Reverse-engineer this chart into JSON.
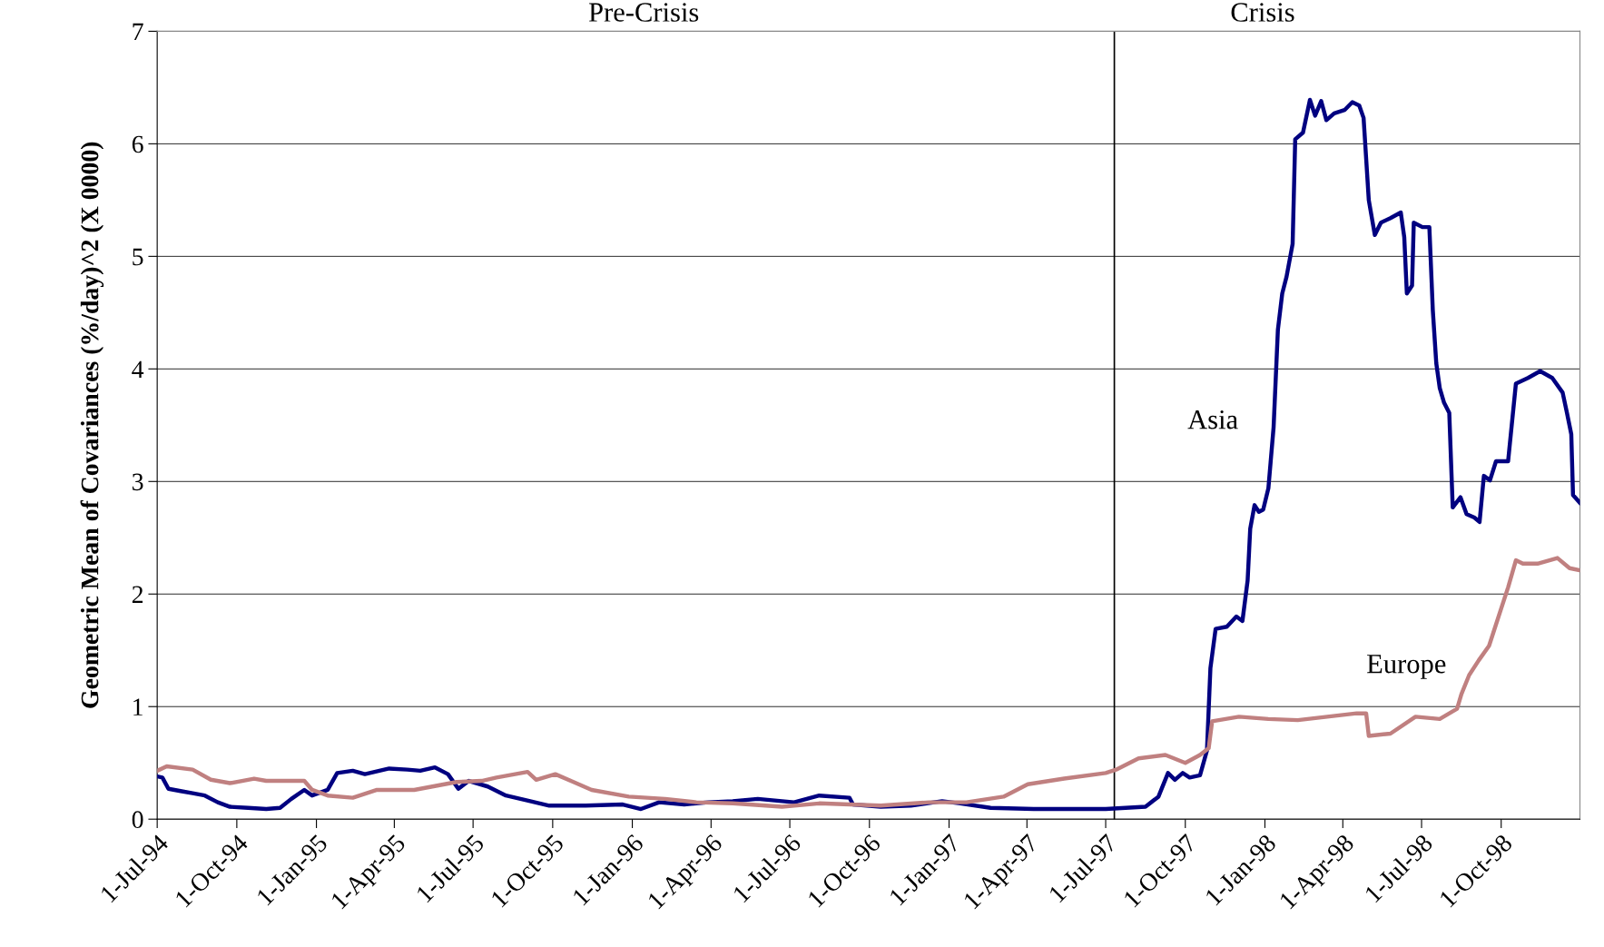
{
  "chart_data": {
    "type": "line",
    "ylabel": "Geometric Mean of Covariances (%/day)^2 (X 0000)",
    "xlim": [
      "1994-07-01",
      "1998-12-31"
    ],
    "ylim": [
      0,
      7
    ],
    "yticks": [
      0,
      1,
      2,
      3,
      4,
      5,
      6,
      7
    ],
    "xticks": [
      {
        "value": "1994-07-01",
        "label": "1-Jul-94"
      },
      {
        "value": "1994-10-01",
        "label": "1-Oct-94"
      },
      {
        "value": "1995-01-01",
        "label": "1-Jan-95"
      },
      {
        "value": "1995-04-01",
        "label": "1-Apr-95"
      },
      {
        "value": "1995-07-01",
        "label": "1-Jul-95"
      },
      {
        "value": "1995-10-01",
        "label": "1-Oct-95"
      },
      {
        "value": "1996-01-01",
        "label": "1-Jan-96"
      },
      {
        "value": "1996-04-01",
        "label": "1-Apr-96"
      },
      {
        "value": "1996-07-01",
        "label": "1-Jul-96"
      },
      {
        "value": "1996-10-01",
        "label": "1-Oct-96"
      },
      {
        "value": "1997-01-01",
        "label": "1-Jan-97"
      },
      {
        "value": "1997-04-01",
        "label": "1-Apr-97"
      },
      {
        "value": "1997-07-01",
        "label": "1-Jul-97"
      },
      {
        "value": "1997-10-01",
        "label": "1-Oct-97"
      },
      {
        "value": "1998-01-01",
        "label": "1-Jan-98"
      },
      {
        "value": "1998-04-01",
        "label": "1-Apr-98"
      },
      {
        "value": "1998-07-01",
        "label": "1-Jul-98"
      },
      {
        "value": "1998-10-01",
        "label": "1-Oct-98"
      }
    ],
    "grid": "y",
    "legend": false,
    "line_style": "solid",
    "marker": "none",
    "ref_lines": [
      {
        "axis": "x",
        "value": "1997-07-11",
        "color": "#000000"
      }
    ],
    "annotations": [
      "Pre-Crisis",
      "Crisis"
    ],
    "series": [
      {
        "name": "Asia",
        "color": "#000080",
        "x": [
          "1994-07-01",
          "1994-07-07",
          "1994-07-14",
          "1994-07-28",
          "1994-08-11",
          "1994-08-25",
          "1994-09-09",
          "1994-09-23",
          "1994-10-14",
          "1994-11-04",
          "1994-11-20",
          "1994-12-03",
          "1994-12-18",
          "1994-12-27",
          "1995-01-14",
          "1995-01-25",
          "1995-02-12",
          "1995-02-26",
          "1995-03-26",
          "1995-04-16",
          "1995-05-01",
          "1995-05-18",
          "1995-06-02",
          "1995-06-14",
          "1995-06-26",
          "1995-07-18",
          "1995-08-08",
          "1995-09-05",
          "1995-09-27",
          "1995-11-08",
          "1995-12-21",
          "1996-01-11",
          "1996-02-01",
          "1996-03-01",
          "1996-03-29",
          "1996-04-26",
          "1996-05-25",
          "1996-07-06",
          "1996-08-04",
          "1996-09-08",
          "1996-09-12",
          "1996-10-14",
          "1996-11-18",
          "1996-12-24",
          "1997-01-14",
          "1997-02-18",
          "1997-04-09",
          "1997-06-05",
          "1997-07-01",
          "1997-08-16",
          "1997-08-31",
          "1997-09-11",
          "1997-09-19",
          "1997-09-28",
          "1997-10-06",
          "1997-10-18",
          "1997-10-26",
          "1997-10-30",
          "1997-11-05",
          "1997-11-18",
          "1997-11-29",
          "1997-12-06",
          "1997-12-12",
          "1997-12-15",
          "1997-12-20",
          "1997-12-25",
          "1997-12-30",
          "1998-01-05",
          "1998-01-11",
          "1998-01-16",
          "1998-01-21",
          "1998-01-26",
          "1998-02-02",
          "1998-02-05",
          "1998-02-14",
          "1998-02-22",
          "1998-02-28",
          "1998-03-07",
          "1998-03-13",
          "1998-03-22",
          "1998-04-03",
          "1998-04-12",
          "1998-04-20",
          "1998-04-25",
          "1998-05-01",
          "1998-05-08",
          "1998-05-15",
          "1998-05-26",
          "1998-06-07",
          "1998-06-11",
          "1998-06-14",
          "1998-06-20",
          "1998-06-22",
          "1998-07-02",
          "1998-07-10",
          "1998-07-14",
          "1998-07-18",
          "1998-07-22",
          "1998-07-27",
          "1998-08-02",
          "1998-08-06",
          "1998-08-15",
          "1998-08-22",
          "1998-08-31",
          "1998-09-06",
          "1998-09-11",
          "1998-09-18",
          "1998-09-25",
          "1998-10-09",
          "1998-10-18",
          "1998-11-01",
          "1998-11-15",
          "1998-11-29",
          "1998-12-11",
          "1998-12-16",
          "1998-12-21",
          "1998-12-23",
          "1998-12-31"
        ],
        "values": [
          0.38,
          0.37,
          0.27,
          0.25,
          0.23,
          0.21,
          0.15,
          0.11,
          0.1,
          0.09,
          0.1,
          0.18,
          0.26,
          0.21,
          0.26,
          0.41,
          0.43,
          0.4,
          0.45,
          0.44,
          0.43,
          0.46,
          0.4,
          0.27,
          0.34,
          0.29,
          0.21,
          0.16,
          0.12,
          0.12,
          0.13,
          0.09,
          0.15,
          0.13,
          0.15,
          0.16,
          0.18,
          0.15,
          0.21,
          0.19,
          0.13,
          0.11,
          0.12,
          0.16,
          0.14,
          0.1,
          0.09,
          0.09,
          0.09,
          0.11,
          0.2,
          0.41,
          0.35,
          0.41,
          0.37,
          0.39,
          0.61,
          1.34,
          1.69,
          1.71,
          1.8,
          1.76,
          2.12,
          2.58,
          2.79,
          2.73,
          2.75,
          2.94,
          3.48,
          4.35,
          4.67,
          4.82,
          5.11,
          6.04,
          6.1,
          6.39,
          6.25,
          6.38,
          6.21,
          6.27,
          6.3,
          6.37,
          6.34,
          6.23,
          5.5,
          5.19,
          5.3,
          5.34,
          5.39,
          5.17,
          4.67,
          4.74,
          5.3,
          5.26,
          5.26,
          4.52,
          4.05,
          3.83,
          3.7,
          3.61,
          2.77,
          2.86,
          2.71,
          2.68,
          2.64,
          3.05,
          3.01,
          3.18,
          3.18,
          3.87,
          3.92,
          3.98,
          3.92,
          3.79,
          3.61,
          3.42,
          2.88,
          2.81
        ]
      },
      {
        "name": "Europe",
        "color": "#c08080",
        "x": [
          "1994-07-01",
          "1994-07-12",
          "1994-08-11",
          "1994-09-01",
          "1994-09-23",
          "1994-10-21",
          "1994-11-04",
          "1994-12-18",
          "1994-12-27",
          "1995-01-14",
          "1995-02-12",
          "1995-03-12",
          "1995-04-24",
          "1995-05-15",
          "1995-06-12",
          "1995-07-11",
          "1995-07-28",
          "1995-09-02",
          "1995-09-12",
          "1995-10-04",
          "1995-10-25",
          "1995-11-15",
          "1995-12-28",
          "1996-02-08",
          "1996-03-15",
          "1996-04-26",
          "1996-06-22",
          "1996-08-04",
          "1996-10-14",
          "1996-12-09",
          "1997-01-21",
          "1997-03-05",
          "1997-04-02",
          "1997-05-14",
          "1997-07-01",
          "1997-07-13",
          "1997-08-08",
          "1997-09-08",
          "1997-10-01",
          "1997-10-18",
          "1997-10-28",
          "1997-11-01",
          "1997-12-02",
          "1998-01-05",
          "1998-02-08",
          "1998-03-14",
          "1998-04-17",
          "1998-04-28",
          "1998-05-01",
          "1998-05-26",
          "1998-06-24",
          "1998-07-22",
          "1998-08-11",
          "1998-08-16",
          "1998-08-25",
          "1998-09-05",
          "1998-09-17",
          "1998-09-28",
          "1998-10-09",
          "1998-10-18",
          "1998-10-26",
          "1998-11-12",
          "1998-12-05",
          "1998-12-19",
          "1998-12-31"
        ],
        "values": [
          0.43,
          0.47,
          0.44,
          0.35,
          0.32,
          0.36,
          0.34,
          0.34,
          0.26,
          0.21,
          0.19,
          0.26,
          0.26,
          0.29,
          0.33,
          0.34,
          0.37,
          0.42,
          0.35,
          0.4,
          0.33,
          0.26,
          0.2,
          0.18,
          0.15,
          0.14,
          0.11,
          0.14,
          0.12,
          0.15,
          0.15,
          0.2,
          0.31,
          0.36,
          0.41,
          0.44,
          0.54,
          0.57,
          0.5,
          0.57,
          0.63,
          0.87,
          0.91,
          0.89,
          0.88,
          0.91,
          0.94,
          0.94,
          0.74,
          0.76,
          0.91,
          0.89,
          0.98,
          1.11,
          1.28,
          1.41,
          1.54,
          1.8,
          2.06,
          2.3,
          2.27,
          2.27,
          2.32,
          2.23,
          2.21
        ]
      }
    ]
  }
}
